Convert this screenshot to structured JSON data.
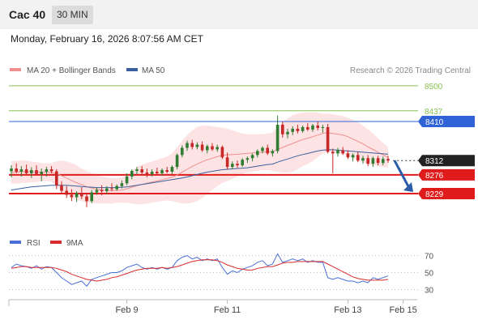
{
  "header": {
    "instrument": "Cac 40",
    "timeframe": "30 MIN"
  },
  "datetime": "Monday, February 16, 2026 8:07:56 AM CET",
  "legend": {
    "ma20": "MA 20 + Bollinger Bands",
    "ma50": "MA 50"
  },
  "copyright": "Research © 2026 Trading Central",
  "colors": {
    "up": "#2e7d32",
    "down": "#c62828",
    "ma20": "#ef8f8f",
    "band": "#fde3e3",
    "ma50": "#3a5f9e",
    "resistance_green": "#8ac152",
    "blue_level": "#2f63d6",
    "red_level": "#e01b1b",
    "arrow": "#2a5ca8",
    "rsi": "#4a6fd6",
    "rsi_ma": "#d82b2b"
  },
  "chart_data": [
    {
      "type": "candlestick",
      "yrange": [
        8170,
        8520
      ],
      "levels": [
        {
          "value": 8500,
          "label": "8500",
          "kind": "resistance"
        },
        {
          "value": 8437,
          "label": "8437",
          "kind": "resistance"
        },
        {
          "value": 8410,
          "label": "8410",
          "kind": "pivot"
        },
        {
          "value": 8312,
          "label": "8312",
          "kind": "last"
        },
        {
          "value": 8276,
          "label": "8276",
          "kind": "support"
        },
        {
          "value": 8229,
          "label": "8229",
          "kind": "support"
        }
      ],
      "x_ticks": [
        {
          "label": "Feb 9",
          "index": 23
        },
        {
          "label": "Feb 11",
          "index": 43
        },
        {
          "label": "Feb 13",
          "index": 67
        },
        {
          "label": "Feb 15",
          "index": 78
        }
      ],
      "ohlc": [
        [
          8285,
          8300,
          8270,
          8292
        ],
        [
          8292,
          8305,
          8280,
          8284
        ],
        [
          8284,
          8298,
          8272,
          8290
        ],
        [
          8290,
          8302,
          8276,
          8280
        ],
        [
          8280,
          8295,
          8268,
          8288
        ],
        [
          8288,
          8300,
          8275,
          8278
        ],
        [
          8278,
          8292,
          8260,
          8284
        ],
        [
          8284,
          8296,
          8272,
          8290
        ],
        [
          8290,
          8298,
          8280,
          8285
        ],
        [
          8285,
          8290,
          8240,
          8250
        ],
        [
          8250,
          8260,
          8230,
          8236
        ],
        [
          8236,
          8248,
          8218,
          8226
        ],
        [
          8226,
          8240,
          8210,
          8220
        ],
        [
          8220,
          8235,
          8208,
          8230
        ],
        [
          8230,
          8245,
          8215,
          8222
        ],
        [
          8222,
          8228,
          8195,
          8210
        ],
        [
          8210,
          8238,
          8205,
          8232
        ],
        [
          8232,
          8244,
          8226,
          8238
        ],
        [
          8238,
          8250,
          8225,
          8235
        ],
        [
          8235,
          8248,
          8228,
          8242
        ],
        [
          8242,
          8255,
          8235,
          8240
        ],
        [
          8240,
          8252,
          8236,
          8248
        ],
        [
          8248,
          8262,
          8242,
          8255
        ],
        [
          8255,
          8280,
          8250,
          8272
        ],
        [
          8272,
          8290,
          8265,
          8286
        ],
        [
          8286,
          8296,
          8278,
          8290
        ],
        [
          8290,
          8298,
          8276,
          8282
        ],
        [
          8282,
          8292,
          8270,
          8278
        ],
        [
          8278,
          8290,
          8272,
          8284
        ],
        [
          8284,
          8294,
          8276,
          8280
        ],
        [
          8280,
          8292,
          8274,
          8288
        ],
        [
          8288,
          8296,
          8280,
          8284
        ],
        [
          8284,
          8300,
          8278,
          8296
        ],
        [
          8296,
          8330,
          8290,
          8326
        ],
        [
          8326,
          8350,
          8320,
          8344
        ],
        [
          8344,
          8362,
          8336,
          8356
        ],
        [
          8356,
          8364,
          8340,
          8346
        ],
        [
          8346,
          8358,
          8340,
          8352
        ],
        [
          8352,
          8360,
          8334,
          8338
        ],
        [
          8338,
          8352,
          8330,
          8348
        ],
        [
          8348,
          8356,
          8336,
          8340
        ],
        [
          8340,
          8352,
          8334,
          8346
        ],
        [
          8346,
          8350,
          8316,
          8320
        ],
        [
          8320,
          8332,
          8290,
          8296
        ],
        [
          8296,
          8310,
          8290,
          8304
        ],
        [
          8304,
          8312,
          8294,
          8300
        ],
        [
          8300,
          8318,
          8296,
          8314
        ],
        [
          8314,
          8322,
          8306,
          8318
        ],
        [
          8318,
          8330,
          8310,
          8326
        ],
        [
          8326,
          8340,
          8320,
          8336
        ],
        [
          8336,
          8348,
          8330,
          8344
        ],
        [
          8344,
          8352,
          8326,
          8330
        ],
        [
          8330,
          8340,
          8322,
          8336
        ],
        [
          8336,
          8425,
          8330,
          8402
        ],
        [
          8402,
          8410,
          8370,
          8378
        ],
        [
          8378,
          8392,
          8368,
          8384
        ],
        [
          8384,
          8398,
          8376,
          8392
        ],
        [
          8392,
          8402,
          8380,
          8386
        ],
        [
          8386,
          8400,
          8382,
          8396
        ],
        [
          8396,
          8406,
          8386,
          8390
        ],
        [
          8390,
          8404,
          8384,
          8400
        ],
        [
          8400,
          8410,
          8388,
          8394
        ],
        [
          8394,
          8402,
          8382,
          8396
        ],
        [
          8396,
          8404,
          8330,
          8334
        ],
        [
          8334,
          8342,
          8280,
          8330
        ],
        [
          8330,
          8344,
          8322,
          8338
        ],
        [
          8338,
          8346,
          8326,
          8330
        ],
        [
          8330,
          8338,
          8316,
          8320
        ],
        [
          8320,
          8330,
          8310,
          8326
        ],
        [
          8326,
          8334,
          8308,
          8312
        ],
        [
          8312,
          8324,
          8304,
          8318
        ],
        [
          8318,
          8326,
          8298,
          8304
        ],
        [
          8304,
          8322,
          8296,
          8318
        ],
        [
          8318,
          8324,
          8300,
          8306
        ],
        [
          8306,
          8322,
          8300,
          8316
        ],
        [
          8316,
          8324,
          8306,
          8312
        ]
      ],
      "ma20": [
        8282,
        8283,
        8284,
        8284,
        8284,
        8283,
        8283,
        8283,
        8282,
        8279,
        8274,
        8268,
        8262,
        8256,
        8252,
        8246,
        8243,
        8240,
        8238,
        8237,
        8236,
        8237,
        8238,
        8241,
        8245,
        8249,
        8252,
        8255,
        8258,
        8261,
        8264,
        8267,
        8270,
        8276,
        8283,
        8290,
        8297,
        8303,
        8309,
        8314,
        8318,
        8322,
        8325,
        8326,
        8327,
        8328,
        8329,
        8330,
        8331,
        8332,
        8333,
        8334,
        8334,
        8340,
        8345,
        8350,
        8355,
        8360,
        8365,
        8368,
        8372,
        8376,
        8380,
        8382,
        8380,
        8378,
        8376,
        8372,
        8366,
        8360,
        8354,
        8346,
        8340,
        8333,
        8326,
        8320
      ],
      "band_upper": [
        8310,
        8312,
        8312,
        8312,
        8310,
        8308,
        8306,
        8305,
        8306,
        8310,
        8312,
        8310,
        8306,
        8300,
        8292,
        8286,
        8280,
        8276,
        8272,
        8270,
        8268,
        8268,
        8270,
        8276,
        8286,
        8296,
        8302,
        8306,
        8310,
        8314,
        8318,
        8322,
        8330,
        8345,
        8362,
        8376,
        8388,
        8396,
        8400,
        8400,
        8398,
        8396,
        8394,
        8392,
        8388,
        8384,
        8380,
        8378,
        8378,
        8378,
        8378,
        8380,
        8382,
        8396,
        8408,
        8418,
        8426,
        8430,
        8432,
        8433,
        8433,
        8432,
        8430,
        8430,
        8428,
        8426,
        8424,
        8420,
        8414,
        8408,
        8400,
        8390,
        8380,
        8368,
        8356,
        8346
      ],
      "band_lower": [
        8254,
        8254,
        8256,
        8256,
        8258,
        8258,
        8260,
        8261,
        8258,
        8248,
        8236,
        8226,
        8218,
        8212,
        8210,
        8206,
        8206,
        8204,
        8204,
        8204,
        8204,
        8206,
        8206,
        8206,
        8204,
        8202,
        8202,
        8204,
        8206,
        8208,
        8210,
        8212,
        8210,
        8207,
        8204,
        8204,
        8206,
        8210,
        8218,
        8228,
        8238,
        8248,
        8256,
        8260,
        8266,
        8272,
        8278,
        8282,
        8284,
        8286,
        8288,
        8288,
        8286,
        8284,
        8282,
        8282,
        8284,
        8290,
        8298,
        8303,
        8311,
        8320,
        8330,
        8334,
        8332,
        8330,
        8328,
        8324,
        8318,
        8312,
        8308,
        8302,
        8300,
        8298,
        8296,
        8294
      ],
      "ma50": [
        8238,
        8240,
        8242,
        8244,
        8246,
        8247,
        8248,
        8249,
        8250,
        8250,
        8250,
        8250,
        8249,
        8248,
        8247,
        8246,
        8245,
        8244,
        8244,
        8244,
        8244,
        8244,
        8245,
        8246,
        8248,
        8250,
        8252,
        8254,
        8256,
        8258,
        8260,
        8262,
        8264,
        8266,
        8268,
        8271,
        8274,
        8277,
        8280,
        8283,
        8285,
        8287,
        8289,
        8290,
        8291,
        8292,
        8293,
        8294,
        8296,
        8298,
        8300,
        8302,
        8303,
        8308,
        8312,
        8316,
        8320,
        8324,
        8327,
        8330,
        8333,
        8336,
        8338,
        8339,
        8339,
        8338,
        8337,
        8336,
        8335,
        8334,
        8333,
        8332,
        8331,
        8330,
        8329,
        8328
      ]
    },
    {
      "type": "line",
      "legend": {
        "rsi": "RSI",
        "rsi_ma": "9MA"
      },
      "yrange": [
        20,
        80
      ],
      "y_ticks": [
        70,
        50,
        30
      ],
      "rsi": [
        56,
        60,
        58,
        57,
        55,
        58,
        54,
        57,
        56,
        50,
        44,
        40,
        36,
        38,
        40,
        34,
        42,
        44,
        46,
        48,
        50,
        50,
        52,
        56,
        58,
        60,
        56,
        54,
        56,
        54,
        56,
        54,
        56,
        64,
        68,
        70,
        66,
        68,
        64,
        66,
        64,
        66,
        56,
        48,
        52,
        50,
        54,
        56,
        58,
        62,
        64,
        58,
        60,
        72,
        62,
        64,
        66,
        64,
        66,
        62,
        64,
        62,
        62,
        44,
        42,
        44,
        42,
        40,
        40,
        38,
        40,
        38,
        44,
        42,
        44,
        46
      ],
      "rsi_ma": [
        55,
        56,
        57,
        57,
        56,
        56,
        56,
        56,
        56,
        55,
        53,
        51,
        48,
        46,
        44,
        42,
        41,
        40,
        41,
        42,
        44,
        45,
        47,
        49,
        51,
        53,
        54,
        55,
        55,
        55,
        56,
        55,
        56,
        57,
        59,
        61,
        63,
        64,
        65,
        65,
        65,
        64,
        62,
        59,
        57,
        55,
        54,
        53,
        53,
        55,
        56,
        57,
        57,
        59,
        61,
        62,
        62,
        63,
        63,
        63,
        63,
        63,
        63,
        60,
        57,
        54,
        51,
        48,
        45,
        43,
        42,
        41,
        41,
        41,
        41,
        42
      ]
    }
  ]
}
